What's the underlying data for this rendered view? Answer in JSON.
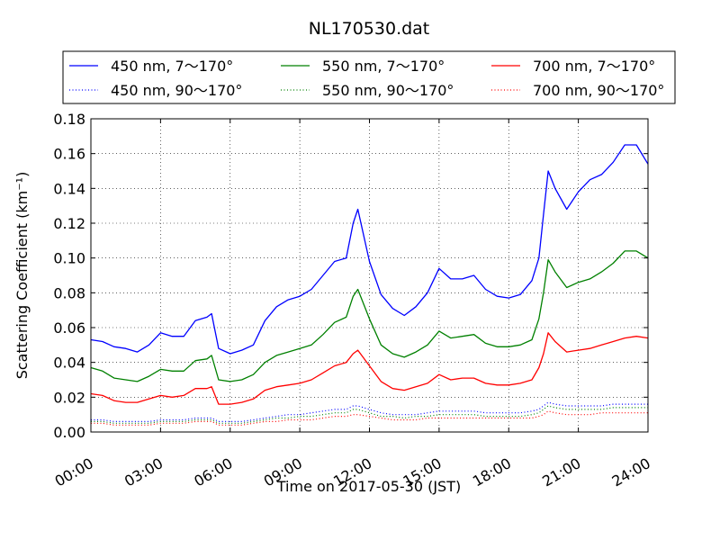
{
  "chart_data": {
    "type": "line",
    "title": "NL170530.dat",
    "xlabel": "Time on 2017-05-30 (JST)",
    "ylabel": "Scattering Coefficient (km⁻¹)",
    "xlim": [
      0,
      24
    ],
    "ylim": [
      0,
      0.18
    ],
    "grid": true,
    "legend_position": "top",
    "x_ticks": [
      "00:00",
      "03:00",
      "06:00",
      "09:00",
      "12:00",
      "15:00",
      "18:00",
      "21:00",
      "24:00"
    ],
    "y_ticks": [
      "0.00",
      "0.02",
      "0.04",
      "0.06",
      "0.08",
      "0.10",
      "0.12",
      "0.14",
      "0.16",
      "0.18"
    ],
    "x": [
      0,
      0.5,
      1,
      1.5,
      2,
      2.5,
      3,
      3.5,
      4,
      4.5,
      5,
      5.2,
      5.5,
      6,
      6.5,
      7,
      7.5,
      8,
      8.5,
      9,
      9.5,
      10,
      10.5,
      11,
      11.3,
      11.5,
      12,
      12.5,
      13,
      13.5,
      14,
      14.5,
      15,
      15.5,
      16,
      16.5,
      17,
      17.5,
      18,
      18.5,
      19,
      19.3,
      19.5,
      19.7,
      20,
      20.5,
      21,
      21.5,
      22,
      22.5,
      23,
      23.5,
      24
    ],
    "series": [
      {
        "name": "450 nm, 7～170°",
        "color": "#0000ff",
        "style": "solid",
        "values": [
          0.053,
          0.052,
          0.049,
          0.048,
          0.046,
          0.05,
          0.057,
          0.055,
          0.055,
          0.064,
          0.066,
          0.068,
          0.048,
          0.045,
          0.047,
          0.05,
          0.064,
          0.072,
          0.076,
          0.078,
          0.082,
          0.09,
          0.098,
          0.1,
          0.12,
          0.128,
          0.098,
          0.079,
          0.071,
          0.067,
          0.072,
          0.08,
          0.094,
          0.088,
          0.088,
          0.09,
          0.082,
          0.078,
          0.077,
          0.079,
          0.087,
          0.1,
          0.125,
          0.15,
          0.14,
          0.128,
          0.138,
          0.145,
          0.148,
          0.155,
          0.165,
          0.165,
          0.154
        ]
      },
      {
        "name": "550 nm, 7～170°",
        "color": "#008000",
        "style": "solid",
        "values": [
          0.037,
          0.035,
          0.031,
          0.03,
          0.029,
          0.032,
          0.036,
          0.035,
          0.035,
          0.041,
          0.042,
          0.044,
          0.03,
          0.029,
          0.03,
          0.033,
          0.04,
          0.044,
          0.046,
          0.048,
          0.05,
          0.056,
          0.063,
          0.066,
          0.078,
          0.082,
          0.065,
          0.05,
          0.045,
          0.043,
          0.046,
          0.05,
          0.058,
          0.054,
          0.055,
          0.056,
          0.051,
          0.049,
          0.049,
          0.05,
          0.053,
          0.065,
          0.08,
          0.099,
          0.092,
          0.083,
          0.086,
          0.088,
          0.092,
          0.097,
          0.104,
          0.104,
          0.1
        ]
      },
      {
        "name": "700 nm, 7～170°",
        "color": "#ff0000",
        "style": "solid",
        "values": [
          0.022,
          0.021,
          0.018,
          0.017,
          0.017,
          0.019,
          0.021,
          0.02,
          0.021,
          0.025,
          0.025,
          0.026,
          0.016,
          0.016,
          0.017,
          0.019,
          0.024,
          0.026,
          0.027,
          0.028,
          0.03,
          0.034,
          0.038,
          0.04,
          0.045,
          0.047,
          0.038,
          0.029,
          0.025,
          0.024,
          0.026,
          0.028,
          0.033,
          0.03,
          0.031,
          0.031,
          0.028,
          0.027,
          0.027,
          0.028,
          0.03,
          0.037,
          0.045,
          0.057,
          0.052,
          0.046,
          0.047,
          0.048,
          0.05,
          0.052,
          0.054,
          0.055,
          0.054
        ]
      },
      {
        "name": "450 nm, 90～170°",
        "color": "#0000ff",
        "style": "dotted",
        "values": [
          0.007,
          0.007,
          0.006,
          0.006,
          0.006,
          0.006,
          0.007,
          0.007,
          0.007,
          0.008,
          0.008,
          0.008,
          0.006,
          0.006,
          0.006,
          0.007,
          0.008,
          0.009,
          0.01,
          0.01,
          0.011,
          0.012,
          0.013,
          0.013,
          0.015,
          0.015,
          0.013,
          0.011,
          0.01,
          0.01,
          0.01,
          0.011,
          0.012,
          0.012,
          0.012,
          0.012,
          0.011,
          0.011,
          0.011,
          0.011,
          0.012,
          0.013,
          0.015,
          0.017,
          0.016,
          0.015,
          0.015,
          0.015,
          0.015,
          0.016,
          0.016,
          0.016,
          0.016
        ]
      },
      {
        "name": "550 nm, 90～170°",
        "color": "#008000",
        "style": "dotted",
        "values": [
          0.006,
          0.006,
          0.005,
          0.005,
          0.005,
          0.005,
          0.006,
          0.006,
          0.006,
          0.007,
          0.007,
          0.007,
          0.005,
          0.005,
          0.005,
          0.006,
          0.007,
          0.008,
          0.008,
          0.009,
          0.009,
          0.01,
          0.011,
          0.011,
          0.013,
          0.013,
          0.011,
          0.009,
          0.009,
          0.008,
          0.009,
          0.009,
          0.01,
          0.01,
          0.01,
          0.01,
          0.009,
          0.009,
          0.009,
          0.009,
          0.01,
          0.011,
          0.013,
          0.015,
          0.014,
          0.013,
          0.013,
          0.013,
          0.013,
          0.014,
          0.014,
          0.014,
          0.014
        ]
      },
      {
        "name": "700 nm, 90～170°",
        "color": "#ff0000",
        "style": "dotted",
        "values": [
          0.005,
          0.005,
          0.004,
          0.004,
          0.004,
          0.004,
          0.005,
          0.005,
          0.005,
          0.006,
          0.006,
          0.006,
          0.004,
          0.004,
          0.004,
          0.005,
          0.006,
          0.006,
          0.007,
          0.007,
          0.007,
          0.008,
          0.009,
          0.009,
          0.01,
          0.01,
          0.009,
          0.008,
          0.007,
          0.007,
          0.007,
          0.008,
          0.008,
          0.008,
          0.008,
          0.008,
          0.008,
          0.008,
          0.008,
          0.008,
          0.008,
          0.009,
          0.01,
          0.012,
          0.011,
          0.01,
          0.01,
          0.01,
          0.011,
          0.011,
          0.011,
          0.011,
          0.011
        ]
      }
    ]
  }
}
